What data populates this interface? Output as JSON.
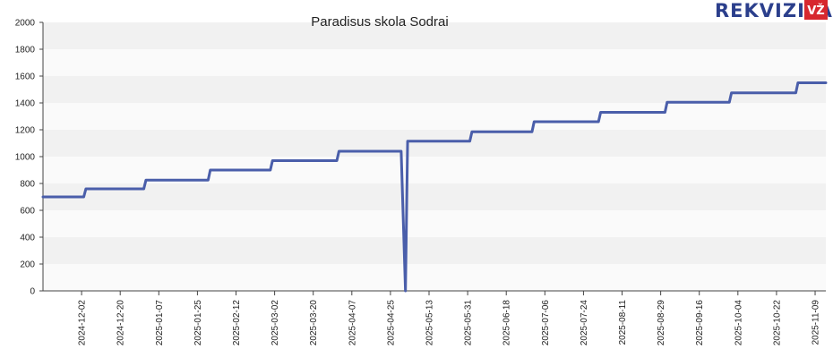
{
  "logo": {
    "text": "REKVIZITAI",
    "badge": "VŽ",
    "color": "#2b3f8c",
    "badge_color": "#d7282f"
  },
  "chart_data": {
    "type": "line",
    "title": "Paradisus skola Sodrai",
    "xlabel": "",
    "ylabel": "",
    "x_range": [
      "2024-11-14",
      "2025-11-14"
    ],
    "ylim": [
      0,
      2000
    ],
    "y_ticks": [
      0,
      200,
      400,
      600,
      800,
      1000,
      1200,
      1400,
      1600,
      1800,
      2000
    ],
    "x_tick_labels": [
      "2024-12-02",
      "2024-12-20",
      "2025-01-07",
      "2025-01-25",
      "2025-02-12",
      "2025-03-02",
      "2025-03-20",
      "2025-04-07",
      "2025-04-25",
      "2025-05-13",
      "2025-05-31",
      "2025-06-18",
      "2025-07-06",
      "2025-07-24",
      "2025-08-11",
      "2025-08-29",
      "2025-09-16",
      "2025-10-04",
      "2025-10-22",
      "2025-11-09"
    ],
    "grid": true,
    "band_colors": [
      "#f1f1f1",
      "#fafafa"
    ],
    "line_color": "#4a5eaa",
    "series": [
      {
        "points": [
          [
            "2024-11-14",
            700
          ],
          [
            "2024-12-03",
            700
          ],
          [
            "2024-12-04",
            760
          ],
          [
            "2024-12-31",
            760
          ],
          [
            "2025-01-01",
            825
          ],
          [
            "2025-01-30",
            825
          ],
          [
            "2025-01-31",
            900
          ],
          [
            "2025-02-28",
            900
          ],
          [
            "2025-03-01",
            970
          ],
          [
            "2025-03-31",
            970
          ],
          [
            "2025-04-01",
            1040
          ],
          [
            "2025-04-30",
            1040
          ],
          [
            "2025-05-02",
            0
          ],
          [
            "2025-05-03",
            1115
          ],
          [
            "2025-06-01",
            1115
          ],
          [
            "2025-06-02",
            1185
          ],
          [
            "2025-06-30",
            1185
          ],
          [
            "2025-07-01",
            1260
          ],
          [
            "2025-07-31",
            1260
          ],
          [
            "2025-08-01",
            1330
          ],
          [
            "2025-08-31",
            1330
          ],
          [
            "2025-09-01",
            1405
          ],
          [
            "2025-09-30",
            1405
          ],
          [
            "2025-10-01",
            1475
          ],
          [
            "2025-10-31",
            1475
          ],
          [
            "2025-11-01",
            1550
          ],
          [
            "2025-11-14",
            1550
          ]
        ]
      }
    ]
  }
}
